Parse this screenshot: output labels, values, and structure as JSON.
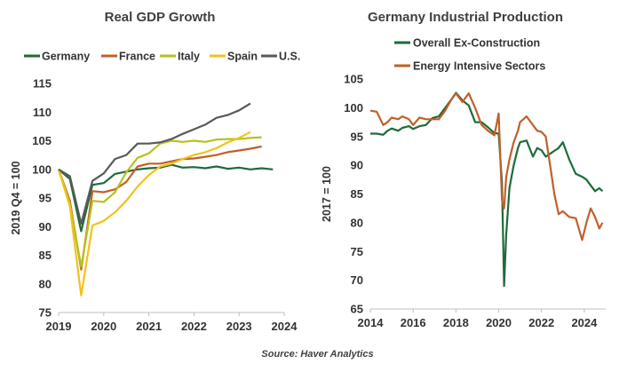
{
  "source": "Source: Haver Analytics",
  "chart_data": [
    {
      "type": "line",
      "title": "Real GDP Growth",
      "ylabel": "2019 Q4 = 100",
      "xlabel": "",
      "xlim": [
        2019,
        2024
      ],
      "ylim": [
        75,
        115
      ],
      "xticks": [
        2019,
        2020,
        2021,
        2022,
        2023,
        2024
      ],
      "yticks": [
        75,
        80,
        85,
        90,
        95,
        100,
        105,
        110,
        115
      ],
      "legend": "top",
      "x": [
        2019.0,
        2019.25,
        2019.5,
        2019.75,
        2020.0,
        2020.25,
        2020.5,
        2020.75,
        2021.0,
        2021.25,
        2021.5,
        2021.75,
        2022.0,
        2022.25,
        2022.5,
        2022.75,
        2023.0,
        2023.25,
        2023.5,
        2023.75,
        2024.0
      ],
      "series": [
        {
          "name": "Germany",
          "color": "#1e6b3a",
          "values": [
            100,
            98.3,
            89.2,
            97.3,
            97.6,
            99.2,
            99.6,
            100.0,
            100.2,
            100.3,
            100.8,
            100.3,
            100.4,
            100.2,
            100.5,
            100.1,
            100.3,
            100.0,
            100.2,
            100.0,
            null
          ]
        },
        {
          "name": "France",
          "color": "#c0602a",
          "values": [
            100,
            94.5,
            82.5,
            96.2,
            96.0,
            96.5,
            97.8,
            100.5,
            101.0,
            101.0,
            101.4,
            101.8,
            101.9,
            102.2,
            102.5,
            103.0,
            103.3,
            103.6,
            104.0,
            null,
            null
          ]
        },
        {
          "name": "Italy",
          "color": "#b5c21a",
          "values": [
            100,
            94.0,
            83.0,
            94.5,
            94.3,
            96.0,
            99.5,
            102.0,
            102.8,
            104.5,
            105.0,
            104.8,
            105.0,
            104.8,
            105.2,
            105.3,
            105.3,
            105.5,
            105.6,
            null,
            null
          ]
        },
        {
          "name": "Spain",
          "color": "#f2c21a",
          "values": [
            100,
            93.5,
            78.0,
            90.2,
            91.0,
            92.5,
            94.5,
            97.0,
            99.0,
            100.5,
            101.0,
            101.8,
            102.5,
            103.0,
            103.7,
            104.7,
            105.5,
            106.5,
            null,
            null,
            null
          ]
        },
        {
          "name": "U.S.",
          "color": "#595959",
          "values": [
            100,
            98.8,
            90.5,
            98.0,
            99.3,
            101.8,
            102.5,
            104.5,
            104.5,
            104.7,
            105.3,
            106.2,
            107.0,
            107.8,
            109.0,
            109.5,
            110.3,
            111.5,
            null,
            null,
            null
          ]
        }
      ]
    },
    {
      "type": "line",
      "title": "Germany Industrial Production",
      "ylabel": "2017 = 100",
      "xlabel": "",
      "xlim": [
        2014,
        2025
      ],
      "ylim": [
        65,
        105
      ],
      "xticks": [
        2014,
        2016,
        2018,
        2020,
        2022,
        2024
      ],
      "yticks": [
        65,
        70,
        75,
        80,
        85,
        90,
        95,
        100,
        105
      ],
      "legend": "top-left",
      "series": [
        {
          "name": "Overall Ex-Construction",
          "color": "#1e6b3a",
          "x": [
            2014.0,
            2014.3,
            2014.6,
            2014.8,
            2015.0,
            2015.3,
            2015.5,
            2015.8,
            2016.0,
            2016.3,
            2016.6,
            2016.9,
            2017.2,
            2017.5,
            2017.8,
            2018.0,
            2018.3,
            2018.6,
            2018.9,
            2019.2,
            2019.5,
            2019.8,
            2020.0,
            2020.15,
            2020.25,
            2020.35,
            2020.5,
            2020.7,
            2020.9,
            2021.0,
            2021.3,
            2021.6,
            2021.8,
            2022.0,
            2022.2,
            2022.4,
            2022.6,
            2022.8,
            2023.0,
            2023.3,
            2023.6,
            2023.9,
            2024.1,
            2024.3,
            2024.5,
            2024.7,
            2024.85
          ],
          "values": [
            95.5,
            95.5,
            95.3,
            96.0,
            96.4,
            96.0,
            96.5,
            96.8,
            96.3,
            96.8,
            97.0,
            98.2,
            98.5,
            100.0,
            101.5,
            102.6,
            101.3,
            100.4,
            97.5,
            97.5,
            96.6,
            95.6,
            95.5,
            87.0,
            69.0,
            78.0,
            86.0,
            90.0,
            93.0,
            94.0,
            94.3,
            91.5,
            93.0,
            92.6,
            91.5,
            92.0,
            92.5,
            93.0,
            94.0,
            91.0,
            88.5,
            88.0,
            87.5,
            86.5,
            85.5,
            86.0,
            85.5
          ]
        },
        {
          "name": "Energy Intensive Sectors",
          "color": "#c0602a",
          "x": [
            2014.0,
            2014.3,
            2014.6,
            2014.8,
            2015.0,
            2015.3,
            2015.5,
            2015.8,
            2016.0,
            2016.3,
            2016.6,
            2016.9,
            2017.2,
            2017.5,
            2017.8,
            2018.0,
            2018.3,
            2018.6,
            2018.9,
            2019.2,
            2019.5,
            2019.8,
            2020.0,
            2020.15,
            2020.25,
            2020.35,
            2020.5,
            2020.7,
            2020.9,
            2021.0,
            2021.3,
            2021.6,
            2021.8,
            2022.0,
            2022.2,
            2022.4,
            2022.6,
            2022.8,
            2023.0,
            2023.3,
            2023.6,
            2023.9,
            2024.1,
            2024.3,
            2024.5,
            2024.7,
            2024.85
          ],
          "values": [
            99.5,
            99.3,
            97.0,
            97.5,
            98.3,
            98.0,
            98.5,
            98.0,
            97.0,
            98.3,
            98.0,
            98.0,
            98.0,
            99.5,
            101.5,
            102.5,
            101.0,
            102.5,
            100.0,
            97.0,
            96.0,
            95.2,
            99.0,
            84.0,
            82.5,
            88.0,
            91.0,
            94.0,
            96.0,
            97.5,
            98.5,
            97.0,
            96.0,
            95.8,
            95.0,
            90.0,
            85.0,
            81.5,
            82.0,
            81.0,
            80.8,
            77.0,
            80.0,
            82.5,
            81.0,
            79.0,
            80.0
          ]
        }
      ]
    }
  ]
}
